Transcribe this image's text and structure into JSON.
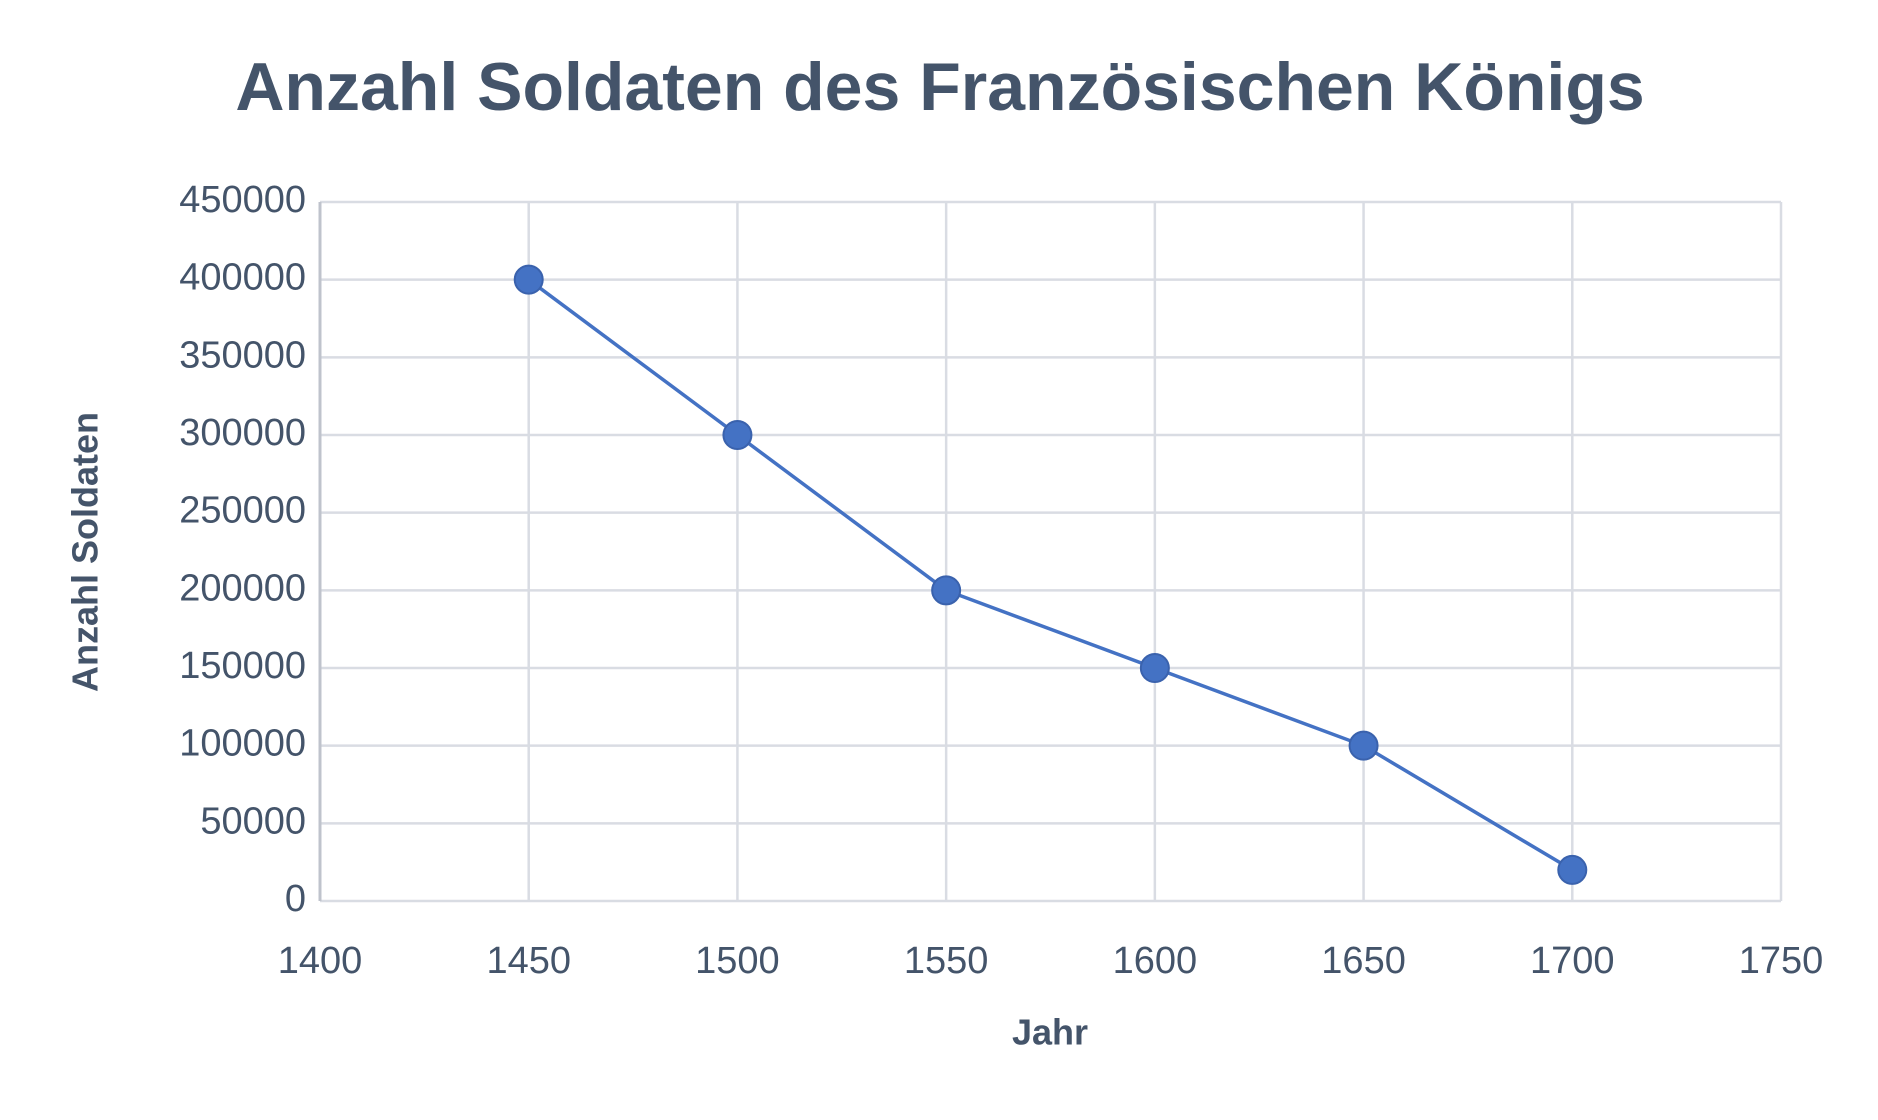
{
  "chart_data": {
    "type": "line",
    "title": "Anzahl Soldaten des Französischen Königs",
    "x_label": "Jahr",
    "y_label": "Anzahl Soldaten",
    "x": [
      1450,
      1500,
      1550,
      1600,
      1650,
      1700
    ],
    "values": [
      400000,
      300000,
      200000,
      150000,
      100000,
      20000
    ],
    "color": "#4472c4",
    "xlim": [
      1400,
      1750
    ],
    "xticks": [
      1400,
      1450,
      1500,
      1550,
      1600,
      1650,
      1700,
      1750
    ],
    "ylim": [
      0,
      450000
    ],
    "yticks": [
      0,
      50000,
      100000,
      150000,
      200000,
      250000,
      300000,
      350000,
      400000,
      450000
    ],
    "grid": true
  }
}
